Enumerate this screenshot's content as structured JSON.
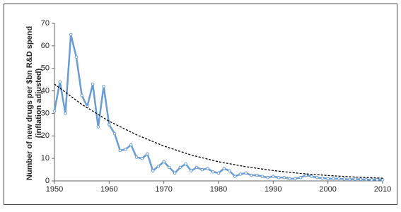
{
  "chart_data": {
    "type": "line",
    "ylabel": [
      "Number of new drugs per $bn R&D spend",
      "(inflation adjusted)"
    ],
    "xlim": [
      1950,
      2010
    ],
    "xticks": [
      1950,
      1960,
      1970,
      1980,
      1990,
      2000,
      2010
    ],
    "ylim": [
      0,
      70
    ],
    "yticks": [
      0,
      10,
      20,
      30,
      40,
      50,
      60,
      70
    ],
    "grid": false,
    "series": [
      {
        "color": "#6a9bd1",
        "style": "solid",
        "markers": true,
        "x": [
          1950,
          1951,
          1952,
          1953,
          1954,
          1955,
          1956,
          1957,
          1958,
          1959,
          1960,
          1961,
          1962,
          1963,
          1964,
          1965,
          1966,
          1967,
          1968,
          1969,
          1970,
          1971,
          1972,
          1973,
          1974,
          1975,
          1976,
          1977,
          1978,
          1979,
          1980,
          1981,
          1982,
          1983,
          1984,
          1985,
          1986,
          1987,
          1988,
          1989,
          1990,
          1991,
          1992,
          1993,
          1994,
          1995,
          1996,
          1997,
          1998,
          1999,
          2000,
          2001,
          2002,
          2003,
          2004,
          2005,
          2006,
          2007,
          2008,
          2009,
          2010
        ],
        "values": [
          31,
          44,
          30,
          65,
          55,
          38,
          33,
          43,
          24,
          42,
          25,
          21,
          13.5,
          14,
          16,
          10.5,
          10,
          12,
          4.5,
          6.5,
          8.5,
          6,
          3.5,
          6,
          7.5,
          4.5,
          6,
          5,
          5.5,
          4,
          3.5,
          5.5,
          4.5,
          2,
          3,
          3.5,
          2.5,
          2.5,
          2,
          1.5,
          2,
          1.5,
          1.5,
          1,
          1,
          1.5,
          2.5,
          2,
          1.5,
          1.2,
          1,
          1,
          1,
          0.8,
          0.7,
          0.8,
          0.7,
          0.6,
          0.5,
          0.6,
          0.5
        ]
      },
      {
        "color": "#000000",
        "style": "dashed",
        "markers": false,
        "x": [
          1950,
          1955,
          1960,
          1965,
          1970,
          1975,
          1980,
          1985,
          1990,
          1995,
          2000,
          2005,
          2010
        ],
        "values": [
          43,
          34,
          26.5,
          20.5,
          15.5,
          11.5,
          8.5,
          6.3,
          4.6,
          3.3,
          2.4,
          1.7,
          1.2
        ]
      }
    ]
  }
}
